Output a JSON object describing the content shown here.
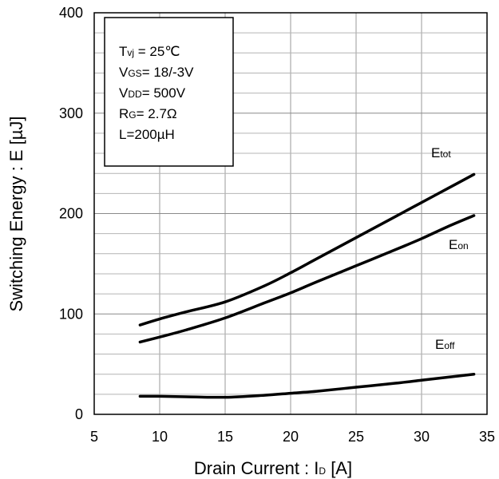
{
  "chart_data": {
    "type": "line",
    "xlabel": "Drain Current : I",
    "xlabel_sub": "D",
    "xlabel_suffix": " [A]",
    "ylabel": "Switching Energy : E [µJ]",
    "xlim": [
      5,
      35
    ],
    "ylim": [
      0,
      400
    ],
    "x_ticks": [
      5,
      10,
      15,
      20,
      25,
      30,
      35
    ],
    "y_ticks": [
      0,
      100,
      200,
      300,
      400
    ],
    "x_tick_labels": [
      "5",
      "10",
      "15",
      "20",
      "25",
      "30",
      "35"
    ],
    "y_tick_labels": [
      "0",
      "100",
      "200",
      "300",
      "400"
    ],
    "grid": true,
    "conditions": [
      {
        "main": "T",
        "sub": "vj",
        "rest": " = 25℃"
      },
      {
        "main": "V",
        "sub": "GS",
        "rest": "= 18/-3V"
      },
      {
        "main": "V",
        "sub": "DD",
        "rest": "= 500V"
      },
      {
        "main": "R",
        "sub": "G",
        "rest": "= 2.7Ω"
      },
      {
        "main": "L=200µH",
        "sub": "",
        "rest": ""
      }
    ],
    "series": [
      {
        "name": "tot",
        "label_main": "E",
        "label_sub": "tot",
        "color": "#000000",
        "x": [
          8.5,
          10,
          12,
          15,
          18,
          20,
          22,
          25,
          28,
          30,
          32,
          34
        ],
        "y": [
          89,
          95,
          102,
          112,
          128,
          141,
          155,
          176,
          197,
          211,
          225,
          239
        ]
      },
      {
        "name": "on",
        "label_main": "E",
        "label_sub": "on",
        "color": "#000000",
        "x": [
          8.5,
          10,
          12,
          15,
          18,
          20,
          22,
          25,
          28,
          30,
          32,
          34
        ],
        "y": [
          72,
          77,
          84,
          96,
          111,
          121,
          132,
          148,
          164,
          175,
          187,
          198
        ]
      },
      {
        "name": "off",
        "label_main": "E",
        "label_sub": "off",
        "color": "#000000",
        "x": [
          8.5,
          10,
          12,
          15,
          18,
          20,
          22,
          25,
          28,
          30,
          32,
          34
        ],
        "y": [
          18,
          18,
          17.5,
          17,
          19,
          21,
          23,
          27,
          31,
          34,
          37,
          40
        ]
      }
    ]
  }
}
